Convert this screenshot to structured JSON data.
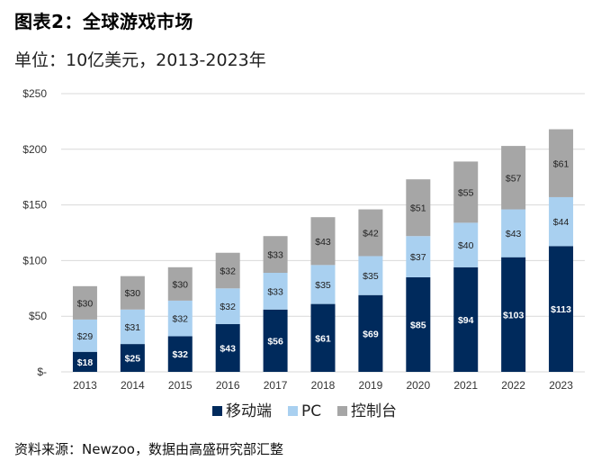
{
  "title": "图表2：全球游戏市场",
  "subtitle": "单位：10亿美元，2013-2023年",
  "source": "资料来源：Newzoo，数据由高盛研究部汇整",
  "colors": {
    "mobile": "#002a5c",
    "pc": "#a9d0f0",
    "console": "#a6a6a6",
    "grid": "#d9d9d9"
  },
  "chart_data": {
    "type": "bar",
    "stacked": true,
    "categories": [
      "2013",
      "2014",
      "2015",
      "2016",
      "2017",
      "2018",
      "2019",
      "2020",
      "2021",
      "2022",
      "2023"
    ],
    "series": [
      {
        "name": "移动端",
        "values": [
          18,
          25,
          32,
          43,
          56,
          61,
          69,
          85,
          94,
          103,
          113
        ],
        "labels": [
          "$18",
          "$25",
          "$32",
          "$43",
          "$56",
          "$61",
          "$69",
          "$85",
          "$94",
          "$103",
          "$113"
        ]
      },
      {
        "name": "PC",
        "values": [
          29,
          31,
          32,
          32,
          33,
          35,
          35,
          37,
          40,
          43,
          44
        ],
        "labels": [
          "$29",
          "$31",
          "$32",
          "$32",
          "$33",
          "$35",
          "$35",
          "$37",
          "$40",
          "$43",
          "$44"
        ]
      },
      {
        "name": "控制台",
        "values": [
          30,
          30,
          30,
          32,
          33,
          43,
          42,
          51,
          55,
          57,
          61
        ],
        "labels": [
          "$30",
          "$30",
          "$30",
          "$32",
          "$33",
          "$43",
          "$42",
          "$51",
          "$55",
          "$57",
          "$61"
        ]
      }
    ],
    "yticks": [
      "$-",
      "$50",
      "$100",
      "$150",
      "$200",
      "$250"
    ],
    "ylim": [
      0,
      250
    ],
    "grid": true,
    "legend_position": "bottom"
  }
}
